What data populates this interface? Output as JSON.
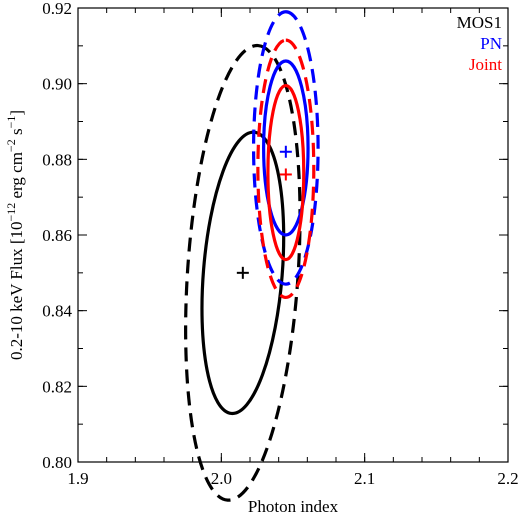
{
  "chart_data": {
    "type": "scatter",
    "title": "",
    "xlabel": "Photon index",
    "ylabel": {
      "prefix": "0.2-10 keV Flux [10",
      "exp1": "−12",
      "mid1": " erg cm",
      "exp2": "−2",
      "mid2": " s",
      "exp3": "−1",
      "suffix": "]"
    },
    "xlim": [
      1.9,
      2.2
    ],
    "ylim": [
      0.8,
      0.92
    ],
    "xticks": [
      "1.9",
      "2.0",
      "2.1",
      "2.2"
    ],
    "yticks": [
      "0.80",
      "0.82",
      "0.84",
      "0.86",
      "0.88",
      "0.90",
      "0.92"
    ],
    "grid": false,
    "legend_position": "top-right",
    "series": [
      {
        "name": "MOS1",
        "color": "#000000",
        "best_fit": {
          "x": 2.015,
          "y": 0.85
        },
        "contours": [
          {
            "style": "solid",
            "cx": 2.015,
            "cy": 0.85,
            "rx": 0.038,
            "ry": 0.0245,
            "angle_deg": 78
          },
          {
            "style": "dashed",
            "cx": 2.015,
            "cy": 0.85,
            "rx": 0.061,
            "ry": 0.0355,
            "angle_deg": 80
          }
        ]
      },
      {
        "name": "PN",
        "color": "#0000ff",
        "best_fit": {
          "x": 2.045,
          "y": 0.882
        },
        "contours": [
          {
            "style": "solid",
            "cx": 2.045,
            "cy": 0.883,
            "rx": 0.023,
            "ry": 0.0155,
            "angle_deg": 90
          },
          {
            "style": "dashed",
            "cx": 2.045,
            "cy": 0.883,
            "rx": 0.036,
            "ry": 0.0225,
            "angle_deg": 90
          }
        ]
      },
      {
        "name": "Joint",
        "color": "#ff0000",
        "best_fit": {
          "x": 2.045,
          "y": 0.876
        },
        "contours": [
          {
            "style": "solid",
            "cx": 2.045,
            "cy": 0.8765,
            "rx": 0.023,
            "ry": 0.0125,
            "angle_deg": 90
          },
          {
            "style": "dashed",
            "cx": 2.045,
            "cy": 0.8775,
            "rx": 0.034,
            "ry": 0.0195,
            "angle_deg": 90
          }
        ]
      }
    ]
  }
}
